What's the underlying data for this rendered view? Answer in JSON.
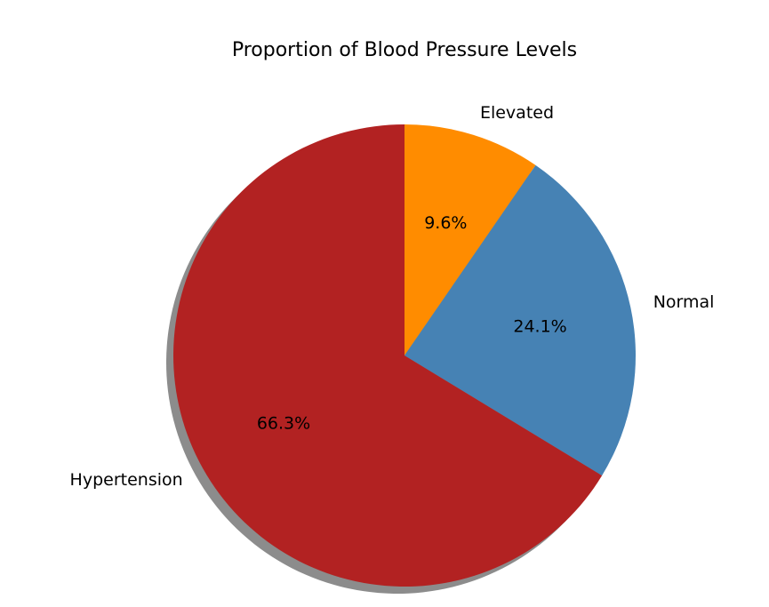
{
  "chart_data": {
    "type": "pie",
    "title": "Proportion of Blood Pressure Levels",
    "start_angle_deg": 90,
    "direction": "clockwise",
    "shadow": true,
    "slices": [
      {
        "label": "Elevated",
        "value": 9.6,
        "pct_label": "9.6%",
        "color": "#ff8c00"
      },
      {
        "label": "Normal",
        "value": 24.1,
        "pct_label": "24.1%",
        "color": "#4682b4"
      },
      {
        "label": "Hypertension",
        "value": 66.3,
        "pct_label": "66.3%",
        "color": "#b22222"
      }
    ]
  }
}
